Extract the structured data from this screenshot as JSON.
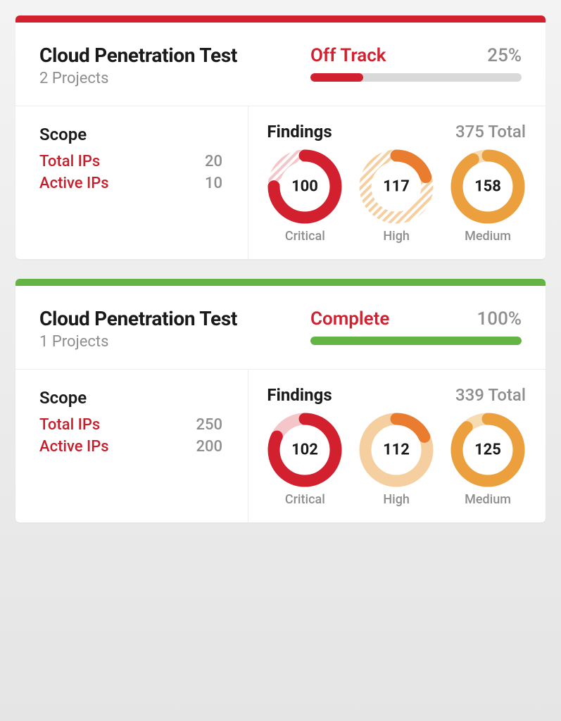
{
  "colors": {
    "red": "#d2202f",
    "red_light": "#f5c6c9",
    "orange": "#e97c2e",
    "orange_light": "#f5cfa0",
    "amber": "#eba03d",
    "amber_light": "#f6dcb0",
    "green": "#64b445",
    "grey_text": "#8e8e8e",
    "track": "#d9d9d9"
  },
  "cards": [
    {
      "top_bar_color": "#d2202f",
      "title": "Cloud Penetration Test",
      "subtitle": "2 Projects",
      "status_label": "Off Track",
      "status_color": "#d2202f",
      "percent_label": "25%",
      "progress_pct": 25,
      "progress_color": "#d2202f",
      "scope_title": "Scope",
      "scope": [
        {
          "label": "Total IPs",
          "value": "20"
        },
        {
          "label": "Active IPs",
          "value": "10"
        }
      ],
      "findings_title": "Findings",
      "findings_total": "375 Total",
      "donuts": [
        {
          "value": 100,
          "label": "Critical",
          "fg": "#d2202f",
          "bg": "#f5c6c9",
          "hatched": true,
          "pct": 75
        },
        {
          "value": 117,
          "label": "High",
          "fg": "#e97c2e",
          "bg": "#f5cfa0",
          "hatched": true,
          "pct": 20
        },
        {
          "value": 158,
          "label": "Medium",
          "fg": "#eba03d",
          "bg": "#f6dcb0",
          "hatched": false,
          "pct": 92
        }
      ]
    },
    {
      "top_bar_color": "#64b445",
      "title": "Cloud Penetration Test",
      "subtitle": "1 Projects",
      "status_label": "Complete",
      "status_color": "#d2202f",
      "percent_label": "100%",
      "progress_pct": 100,
      "progress_color": "#64b445",
      "scope_title": "Scope",
      "scope": [
        {
          "label": "Total IPs",
          "value": "250"
        },
        {
          "label": "Active IPs",
          "value": "200"
        }
      ],
      "findings_title": "Findings",
      "findings_total": "339 Total",
      "donuts": [
        {
          "value": 102,
          "label": "Critical",
          "fg": "#d2202f",
          "bg": "#f5c6c9",
          "hatched": false,
          "pct": 82
        },
        {
          "value": 112,
          "label": "High",
          "fg": "#e97c2e",
          "bg": "#f5cfa0",
          "hatched": false,
          "pct": 18
        },
        {
          "value": 125,
          "label": "Medium",
          "fg": "#eba03d",
          "bg": "#f6dcb0",
          "hatched": false,
          "pct": 88
        }
      ]
    }
  ]
}
